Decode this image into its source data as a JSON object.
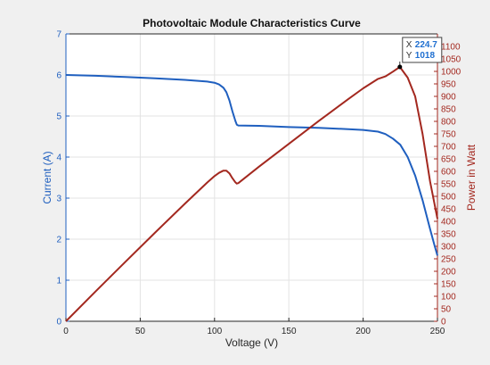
{
  "chart_data": {
    "type": "line",
    "title": "Photovoltaic Module Characteristics Curve",
    "xlabel": "Voltage (V)",
    "ylabel_left": "Current (A)",
    "ylabel_right": "Power in Watt",
    "xlim": [
      0,
      250
    ],
    "ylim_left": [
      0,
      7
    ],
    "ylim_right": [
      0,
      1150
    ],
    "x_ticks": [
      "0",
      "50",
      "100",
      "150",
      "200",
      "250"
    ],
    "y_left_ticks": [
      "0",
      "1",
      "2",
      "3",
      "4",
      "5",
      "6",
      "7"
    ],
    "y_right_ticks": [
      "0",
      "50",
      "100",
      "150",
      "200",
      "250",
      "300",
      "350",
      "400",
      "450",
      "500",
      "550",
      "600",
      "650",
      "700",
      "750",
      "800",
      "850",
      "900",
      "950",
      "1000",
      "1050",
      "1100"
    ],
    "grid": true,
    "colors": {
      "current": "#1f5fbf",
      "power": "#a3281f",
      "left_axis": "#1f5fbf",
      "right_axis": "#a3281f"
    },
    "series": [
      {
        "axis": "left",
        "x": [
          0,
          20,
          40,
          60,
          80,
          95,
          100,
          103,
          106,
          108,
          110,
          112,
          114,
          115,
          116,
          130,
          150,
          170,
          190,
          200,
          210,
          215,
          220,
          225,
          230,
          235,
          240,
          245,
          248,
          250
        ],
        "y": [
          6.0,
          5.98,
          5.95,
          5.92,
          5.88,
          5.84,
          5.81,
          5.77,
          5.69,
          5.58,
          5.38,
          5.12,
          4.88,
          4.79,
          4.77,
          4.76,
          4.73,
          4.71,
          4.68,
          4.66,
          4.62,
          4.56,
          4.45,
          4.3,
          4.0,
          3.55,
          2.95,
          2.25,
          1.85,
          1.6
        ]
      },
      {
        "axis": "right",
        "x": [
          0,
          20,
          40,
          60,
          80,
          95,
          100,
          103,
          106,
          108,
          110,
          112,
          114,
          115,
          116,
          130,
          150,
          170,
          190,
          200,
          210,
          215,
          220,
          224.7,
          230,
          235,
          240,
          245,
          250
        ],
        "y": [
          0,
          120,
          238,
          355,
          470,
          555,
          581,
          594,
          603,
          603,
          592,
          573,
          556,
          551,
          553,
          619,
          710,
          801,
          889,
          932,
          970,
          980,
          999,
          1018,
          975,
          900,
          750,
          560,
          410
        ]
      }
    ],
    "datatip": {
      "x_label": "X",
      "x_value": "224.7",
      "y_label": "Y",
      "y_value": "1018",
      "x": 224.7,
      "y": 1018,
      "axis": "right"
    }
  }
}
